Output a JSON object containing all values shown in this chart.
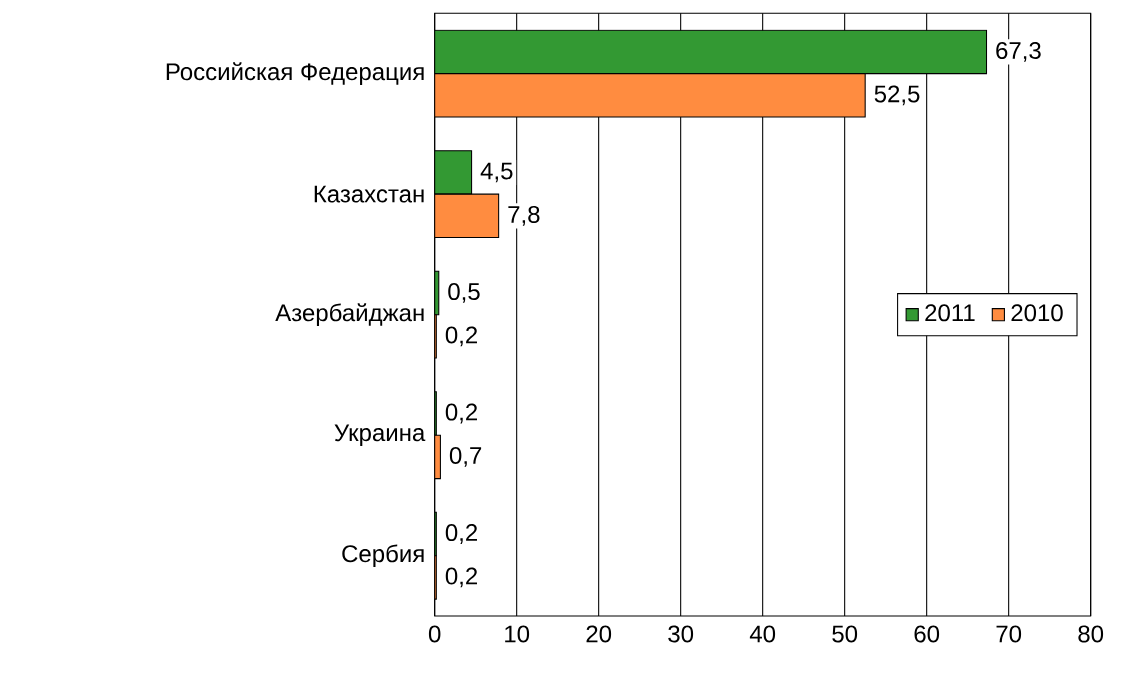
{
  "chart_data": {
    "type": "bar",
    "orientation": "horizontal",
    "categories": [
      "Российская Федерация",
      "Казахстан",
      "Азербайджан",
      "Украина",
      "Сербия"
    ],
    "series": [
      {
        "name": "2011",
        "color": "#339933",
        "values": [
          67.3,
          4.5,
          0.5,
          0.2,
          0.2
        ],
        "value_labels": [
          "67,3",
          "4,5",
          "0,5",
          "0,2",
          "0,2"
        ]
      },
      {
        "name": "2010",
        "color": "#ff8c40",
        "values": [
          52.5,
          7.8,
          0.2,
          0.7,
          0.2
        ],
        "value_labels": [
          "52,5",
          "7,8",
          "0,2",
          "0,7",
          "0,2"
        ]
      }
    ],
    "xlim": [
      0,
      80
    ],
    "xticks": [
      0,
      10,
      20,
      30,
      40,
      50,
      60,
      70,
      80
    ],
    "grid": "x",
    "legend": "right"
  }
}
